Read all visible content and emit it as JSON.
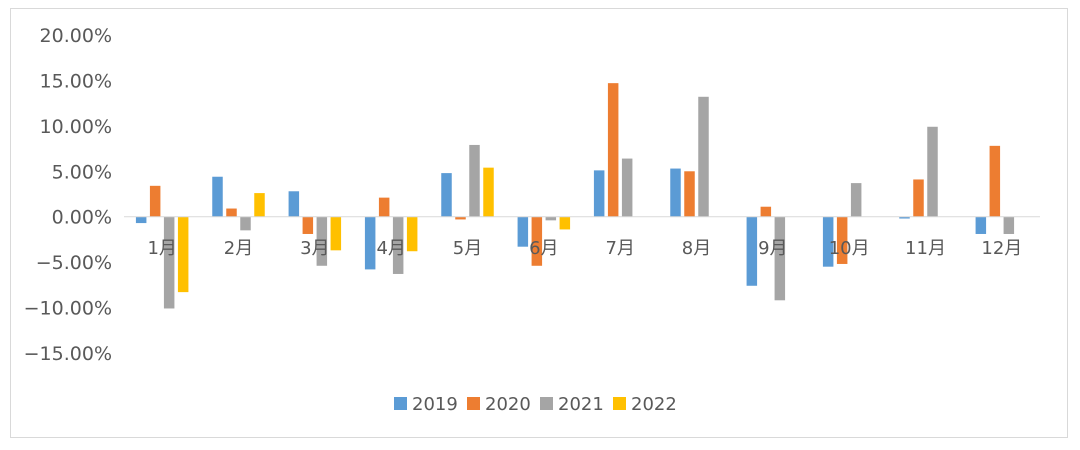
{
  "chart_data": {
    "type": "bar",
    "categories": [
      "1月",
      "2月",
      "3月",
      "4月",
      "5月",
      "6月",
      "7月",
      "8月",
      "9月",
      "10月",
      "11月",
      "12月"
    ],
    "series": [
      {
        "name": "2019",
        "color": "#5b9bd5",
        "values": [
          -0.7,
          4.4,
          2.8,
          -5.8,
          4.8,
          -3.3,
          5.1,
          5.3,
          -7.6,
          -5.5,
          -0.2,
          -1.9
        ]
      },
      {
        "name": "2020",
        "color": "#ed7d31",
        "values": [
          3.4,
          0.9,
          -1.9,
          2.1,
          -0.3,
          -5.4,
          14.7,
          5.0,
          1.1,
          -5.2,
          4.1,
          7.8
        ]
      },
      {
        "name": "2021",
        "color": "#a5a5a5",
        "values": [
          -10.1,
          -1.5,
          -5.4,
          -6.3,
          7.9,
          -0.4,
          6.4,
          13.2,
          -9.2,
          3.7,
          9.9,
          -1.9
        ]
      },
      {
        "name": "2022",
        "color": "#ffc000",
        "values": [
          -8.3,
          2.6,
          -3.7,
          -3.8,
          5.4,
          -1.4,
          null,
          null,
          null,
          null,
          null,
          null
        ]
      }
    ],
    "ylim": [
      -15,
      20
    ],
    "yticks": [
      20,
      15,
      10,
      5,
      0,
      -5,
      -10,
      -15
    ],
    "ytick_labels": [
      "20.00%",
      "15.00%",
      "10.00%",
      "5.00%",
      "0.00%",
      "−5.00%",
      "−10.00%",
      "−15.00%"
    ],
    "grid": false,
    "legend_position": "bottom"
  }
}
